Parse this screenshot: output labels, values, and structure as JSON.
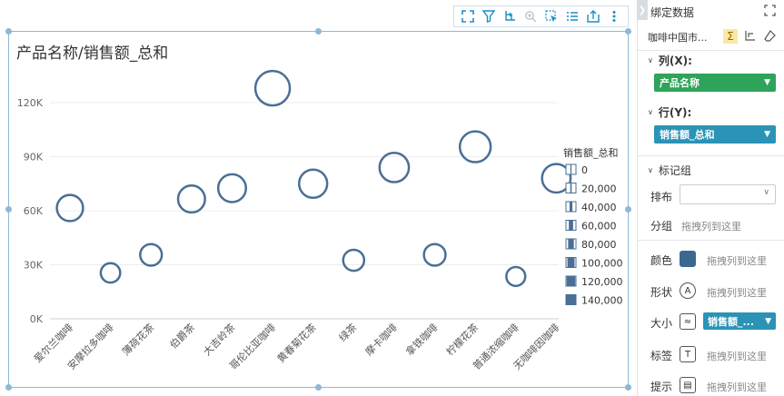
{
  "chart": {
    "title": "产品名称/销售额_总和",
    "legend_title": "销售额_总和",
    "legend_items": [
      "0",
      "20,000",
      "40,000",
      "60,000",
      "80,000",
      "100,000",
      "120,000",
      "140,000"
    ],
    "y_ticks": [
      "0K",
      "30K",
      "60K",
      "90K",
      "120K"
    ]
  },
  "chart_data": {
    "type": "scatter",
    "title": "产品名称/销售额_总和",
    "xlabel": "",
    "ylabel": "",
    "ylim": [
      0,
      140000
    ],
    "categories": [
      "爱尔兰咖啡",
      "安摩拉多咖啡",
      "薄荷花茶",
      "伯爵茶",
      "大吉岭茶",
      "哥伦比亚咖啡",
      "黄春菊花茶",
      "绿茶",
      "摩卡咖啡",
      "拿铁咖啡",
      "柠檬花茶",
      "普通浓缩咖啡",
      "无咖啡因咖啡"
    ],
    "series": [
      {
        "values": [
          61500,
          25500,
          35500,
          66500,
          72500,
          128000,
          75000,
          32500,
          84000,
          35500,
          95500,
          23500,
          78000
        ]
      }
    ],
    "size_encoding": "销售额_总和",
    "color": "#4a6f96",
    "grid": true,
    "legend_position": "right"
  },
  "toolbar": {
    "icons": [
      "fullscreen-icon",
      "filter-icon",
      "drill-icon",
      "zoom-icon",
      "select-icon",
      "list-icon",
      "export-icon",
      "more-icon"
    ]
  },
  "panel": {
    "title": "绑定数据",
    "dataset": "咖啡中国市...",
    "columns_label": "列(X):",
    "columns_field": "产品名称",
    "rows_label": "行(Y):",
    "rows_field": "销售额_总和",
    "marks_label": "标记组",
    "layout_label": "排布",
    "group_label": "分组",
    "group_placeholder": "拖拽列到这里",
    "color_label": "颜色",
    "color_placeholder": "拖拽列到这里",
    "shape_label": "形状",
    "shape_placeholder": "拖拽列到这里",
    "size_label": "大小",
    "size_field": "销售额_...",
    "tag_label": "标签",
    "tag_placeholder": "拖拽列到这里",
    "tip_label": "提示",
    "tip_placeholder": "拖拽列到这里",
    "colors": {
      "green": "#2ea35a",
      "teal": "#2b93b5",
      "accent": "#1a8ec7"
    }
  }
}
